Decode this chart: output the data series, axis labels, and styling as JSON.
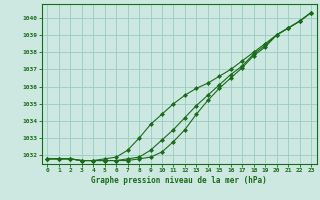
{
  "bg_color": "#cce8e0",
  "grid_color": "#99ccc4",
  "line_color": "#1a6b1a",
  "marker_color": "#1a6b1a",
  "xlabel": "Graphe pression niveau de la mer (hPa)",
  "xlim": [
    -0.5,
    23.5
  ],
  "ylim": [
    1031.5,
    1040.8
  ],
  "yticks": [
    1032,
    1033,
    1034,
    1035,
    1036,
    1037,
    1038,
    1039,
    1040
  ],
  "xticks": [
    0,
    1,
    2,
    3,
    4,
    5,
    6,
    7,
    8,
    9,
    10,
    11,
    12,
    13,
    14,
    15,
    16,
    17,
    18,
    19,
    20,
    21,
    22,
    23
  ],
  "series1": [
    1031.8,
    1031.8,
    1031.8,
    1031.7,
    1031.7,
    1031.7,
    1031.7,
    1031.8,
    1031.9,
    1032.3,
    1032.9,
    1033.5,
    1034.2,
    1034.9,
    1035.5,
    1036.1,
    1036.7,
    1037.2,
    1037.9,
    1038.4,
    1039.0,
    1039.4,
    1039.8,
    1040.3
  ],
  "series2": [
    1031.8,
    1031.8,
    1031.8,
    1031.7,
    1031.7,
    1031.8,
    1031.9,
    1032.3,
    1033.0,
    1033.8,
    1034.4,
    1035.0,
    1035.5,
    1035.9,
    1036.2,
    1036.6,
    1037.0,
    1037.5,
    1038.0,
    1038.5,
    1039.0,
    1039.4,
    1039.8,
    1040.3
  ],
  "series3": [
    1031.8,
    1031.8,
    1031.8,
    1031.7,
    1031.7,
    1031.7,
    1031.7,
    1031.7,
    1031.8,
    1031.9,
    1032.2,
    1032.8,
    1033.5,
    1034.4,
    1035.2,
    1035.9,
    1036.5,
    1037.1,
    1037.8,
    1038.3,
    1039.0,
    1039.4,
    1039.8,
    1040.3
  ]
}
